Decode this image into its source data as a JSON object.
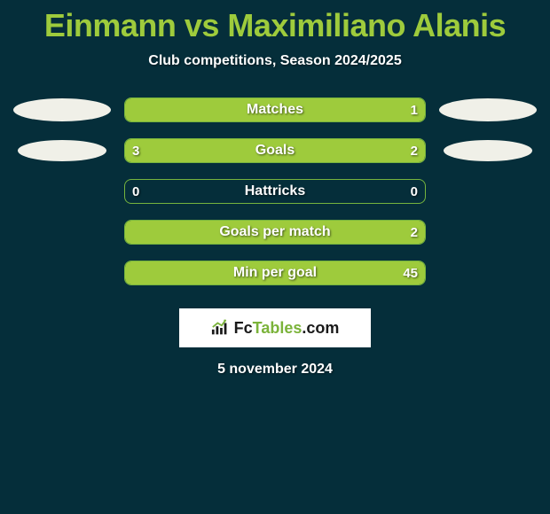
{
  "title": "Einmann vs Maximiliano Alanis",
  "subtitle": "Club competitions, Season 2024/2025",
  "date": "5 november 2024",
  "logo": {
    "text_a": "Fc",
    "text_b": "Tables",
    "text_c": ".com"
  },
  "colors": {
    "background": "#052e3a",
    "accent": "#9ecb3c",
    "bar_border": "#76b43e",
    "text": "#ffffff",
    "ellipse": "#f0f0e8"
  },
  "rows": [
    {
      "label": "Matches",
      "left_val": "",
      "right_val": "1",
      "left_fill_pct": 100,
      "right_fill_pct": 0,
      "left_ellipse_color": "#f0f0e8",
      "right_ellipse_color": "#f0f0e8",
      "ellipse_class": "ellipse"
    },
    {
      "label": "Goals",
      "left_val": "3",
      "right_val": "2",
      "left_fill_pct": 60,
      "right_fill_pct": 40,
      "left_ellipse_color": "#f0f0e8",
      "right_ellipse_color": "#f0f0e8",
      "ellipse_class": "ellipse-sm"
    },
    {
      "label": "Hattricks",
      "left_val": "0",
      "right_val": "0",
      "left_fill_pct": 0,
      "right_fill_pct": 0,
      "left_ellipse_color": "",
      "right_ellipse_color": "",
      "ellipse_class": ""
    },
    {
      "label": "Goals per match",
      "left_val": "",
      "right_val": "2",
      "left_fill_pct": 0,
      "right_fill_pct": 100,
      "left_ellipse_color": "",
      "right_ellipse_color": "",
      "ellipse_class": ""
    },
    {
      "label": "Min per goal",
      "left_val": "",
      "right_val": "45",
      "left_fill_pct": 0,
      "right_fill_pct": 100,
      "left_ellipse_color": "",
      "right_ellipse_color": "",
      "ellipse_class": ""
    }
  ]
}
